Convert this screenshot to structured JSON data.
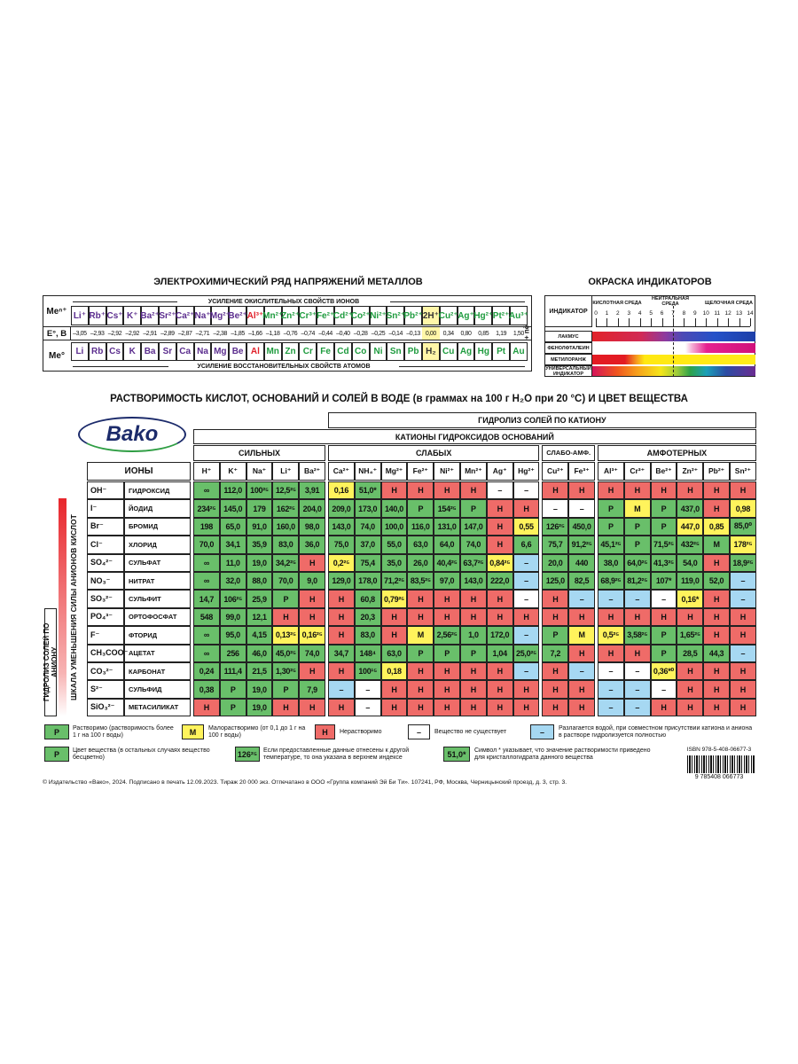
{
  "series_section": {
    "title": "ЭЛЕКТРОХИМИЧЕСКИЙ РЯД НАПРЯЖЕНИЙ МЕТАЛЛОВ",
    "row_labels": [
      "Meⁿ⁺",
      "E°, B",
      "Me°"
    ],
    "arrow_top": "УСИЛЕНИЕ ОКИСЛИТЕЛЬНЫХ СВОЙСТВ ИОНОВ",
    "arrow_bottom": "УСИЛЕНИЕ ВОССТАНОВИТЕЛЬНЫХ СВОЙСТВ АТОМОВ",
    "electrons": "+ nē",
    "ions": [
      "Li⁺",
      "Rb⁺",
      "Cs⁺",
      "K⁺",
      "Ba²⁺",
      "Sr²⁺",
      "Ca²⁺",
      "Na⁺",
      "Mg²⁺",
      "Be²⁺",
      "Al³⁺",
      "Mn²⁺",
      "Zn²⁺",
      "Cr³⁺",
      "Fe²⁺",
      "Cd²⁺",
      "Co²⁺",
      "Ni²⁺",
      "Sn²⁺",
      "Pb²⁺",
      "2H⁺",
      "Cu²⁺",
      "Ag⁺",
      "Hg²⁺",
      "Pt²⁺",
      "Au³⁺"
    ],
    "potentials": [
      "–3,05",
      "–2,93",
      "–2,92",
      "–2,92",
      "–2,91",
      "–2,89",
      "–2,87",
      "–2,71",
      "–2,38",
      "–1,85",
      "–1,66",
      "–1,18",
      "–0,76",
      "–0,74",
      "–0,44",
      "–0,40",
      "–0,28",
      "–0,25",
      "–0,14",
      "–0,13",
      "0,00",
      "0,34",
      "0,80",
      "0,85",
      "1,19",
      "1,50"
    ],
    "metals": [
      "Li",
      "Rb",
      "Cs",
      "K",
      "Ba",
      "Sr",
      "Ca",
      "Na",
      "Mg",
      "Be",
      "Al",
      "Mn",
      "Zn",
      "Cr",
      "Fe",
      "Cd",
      "Co",
      "Ni",
      "Sn",
      "Pb",
      "H₂",
      "Cu",
      "Ag",
      "Hg",
      "Pt",
      "Au"
    ],
    "element_colors": "pppppppppprggggggggghggggg",
    "palette": {
      "p": "#5b2d8e",
      "r": "#e0202a",
      "g": "#1e9b3e",
      "h": "#333333"
    }
  },
  "indicators": {
    "title": "ОКРАСКА ИНДИКАТОРОВ",
    "header": "ИНДИКАТОР",
    "acid": "КИСЛОТНАЯ СРЕДА",
    "neutral": "НЕЙТРАЛЬНАЯ СРЕДА",
    "alkaline": "ЩЕЛОЧНАЯ СРЕДА",
    "scale": [
      0,
      1,
      2,
      3,
      4,
      5,
      6,
      7,
      8,
      9,
      10,
      11,
      12,
      13,
      14
    ],
    "rows": [
      "ЛАКМУС",
      "ФЕНОЛФТАЛЕИН",
      "МЕТИЛОРАНЖ",
      "УНИВЕРСАЛЬНЫЙ ИНДИКАТОР"
    ]
  },
  "solubility": {
    "title": "РАСТВОРИМОСТЬ КИСЛОТ, ОСНОВАНИЙ И СОЛЕЙ В ВОДЕ (в граммах на 100 г H₂O при 20 °C) И ЦВЕТ ВЕЩЕСТВА",
    "logo": "Bako",
    "hydrolysis_cation": "ГИДРОЛИЗ СОЛЕЙ ПО КАТИОНУ",
    "cations_header": "КАТИОНЫ ГИДРОКСИДОВ ОСНОВАНИЙ",
    "groups": [
      "СИЛЬНЫХ",
      "СЛАБЫХ",
      "СЛАБО-АМФ.",
      "АМФОТЕРНЫХ"
    ],
    "ions_header": "ИОНЫ",
    "hydrolysis_anion": "ГИДРОЛИЗ СОЛЕЙ ПО АНИОНУ",
    "anion_scale": "ШКАЛА УМЕНЬШЕНИЯ СИЛЫ АНИОНОВ КИСЛОТ",
    "cations": [
      "H⁺",
      "K⁺",
      "Na⁺",
      "Li⁺",
      "Ba²⁺",
      "Ca²⁺",
      "NH₄⁺",
      "Mg²⁺",
      "Fe²⁺",
      "Ni²⁺",
      "Mn²⁺",
      "Ag⁺",
      "Hg²⁺",
      "Cu²⁺",
      "Fe³⁺",
      "Al³⁺",
      "Cr³⁺",
      "Be²⁺",
      "Zn²⁺",
      "Pb²⁺",
      "Sn²⁺"
    ],
    "anions": [
      {
        "formula": "OH⁻",
        "name": "ГИДРОКСИД"
      },
      {
        "formula": "I⁻",
        "name": "ЙОДИД"
      },
      {
        "formula": "Br⁻",
        "name": "БРОМИД"
      },
      {
        "formula": "Cl⁻",
        "name": "ХЛОРИД"
      },
      {
        "formula": "SO₄²⁻",
        "name": "СУЛЬФАТ"
      },
      {
        "formula": "NO₃⁻",
        "name": "НИТРАТ"
      },
      {
        "formula": "SO₃²⁻",
        "name": "СУЛЬФИТ"
      },
      {
        "formula": "PO₄³⁻",
        "name": "ОРТОФОСФАТ"
      },
      {
        "formula": "F⁻",
        "name": "ФТОРИД"
      },
      {
        "formula": "CH₃COO⁻",
        "name": "АЦЕТАТ"
      },
      {
        "formula": "CO₃²⁻",
        "name": "КАРБОНАТ"
      },
      {
        "formula": "S²⁻",
        "name": "СУЛЬФИД"
      },
      {
        "formula": "SiO₃²⁻",
        "name": "МЕТАСИЛИКАТ"
      }
    ],
    "values": [
      [
        "∞",
        "112,0",
        "100²⁵",
        "12,5²⁵",
        "3,91",
        "0,16",
        "51,0*",
        "Н",
        "Н",
        "Н",
        "Н",
        "–",
        "–",
        "Н",
        "Н",
        "Н",
        "Н",
        "Н",
        "Н",
        "Н",
        "Н"
      ],
      [
        "234²⁵",
        "145,0",
        "179",
        "162²⁵",
        "204,0",
        "209,0",
        "173,0",
        "140,0",
        "Р",
        "154²⁵",
        "Р",
        "Н",
        "Н",
        "–",
        "–",
        "Р",
        "М",
        "Р",
        "437,0",
        "Н",
        "0,98"
      ],
      [
        "198",
        "65,0",
        "91,0",
        "160,0",
        "98,0",
        "143,0",
        "74,0",
        "100,0",
        "116,0",
        "131,0",
        "147,0",
        "Н",
        "0,55",
        "126²⁵",
        "450,0",
        "Р",
        "Р",
        "Р",
        "447,0",
        "0,85",
        "85,0⁰"
      ],
      [
        "70,0",
        "34,1",
        "35,9",
        "83,0",
        "36,0",
        "75,0",
        "37,0",
        "55,0",
        "63,0",
        "64,0",
        "74,0",
        "Н",
        "6,6",
        "75,7",
        "91,2²⁵",
        "45,1²⁵",
        "Р",
        "71,5²⁵",
        "432²⁵",
        "М",
        "178²⁵"
      ],
      [
        "∞",
        "11,0",
        "19,0",
        "34,2²⁵",
        "Н",
        "0,2²⁵",
        "75,4",
        "35,0",
        "26,0",
        "40,4²⁵",
        "63,7²⁵",
        "0,84²⁵",
        "–",
        "20,0",
        "440",
        "38,0",
        "64,0²⁵",
        "41,3²⁵",
        "54,0",
        "Н",
        "18,9²⁵"
      ],
      [
        "∞",
        "32,0",
        "88,0",
        "70,0",
        "9,0",
        "129,0",
        "178,0",
        "71,2²⁵",
        "83,5²⁵",
        "97,0",
        "143,0",
        "222,0",
        "–",
        "125,0",
        "82,5",
        "68,9²⁵",
        "81,2²⁵",
        "107*",
        "119,0",
        "52,0",
        "–"
      ],
      [
        "14,7",
        "106²⁵",
        "25,9",
        "Р",
        "Н",
        "Н",
        "60,8",
        "0,79²⁵",
        "Н",
        "Н",
        "Н",
        "Н",
        "–",
        "Н",
        "–",
        "–",
        "–",
        "–",
        "0,16*",
        "Н",
        "–"
      ],
      [
        "548",
        "99,0",
        "12,1",
        "Н",
        "Н",
        "Н",
        "20,3",
        "Н",
        "Н",
        "Н",
        "Н",
        "Н",
        "Н",
        "Н",
        "Н",
        "Н",
        "Н",
        "Н",
        "Н",
        "Н",
        "Н"
      ],
      [
        "∞",
        "95,0",
        "4,15",
        "0,13²⁵",
        "0,16²⁵",
        "Н",
        "83,0",
        "Н",
        "М",
        "2,56²⁵",
        "1,0",
        "172,0",
        "–",
        "Р",
        "М",
        "0,5²⁵",
        "3,58²⁵",
        "Р",
        "1,65²⁵",
        "Н",
        "Н"
      ],
      [
        "∞",
        "256",
        "46,0",
        "45,0²⁵",
        "74,0",
        "34,7",
        "148⁴",
        "63,0",
        "Р",
        "Р",
        "Р",
        "1,04",
        "25,0²⁵",
        "7,2",
        "Н",
        "Н",
        "Н",
        "Р",
        "28,5",
        "44,3",
        "–"
      ],
      [
        "0,24",
        "111,4",
        "21,5",
        "1,30²⁵",
        "Н",
        "Н",
        "100¹⁵",
        "0,18",
        "Н",
        "Н",
        "Н",
        "Н",
        "–",
        "Н",
        "–",
        "–",
        "–",
        "0,36*⁰",
        "Н",
        "Н",
        "Н"
      ],
      [
        "0,38",
        "Р",
        "19,0",
        "Р",
        "7,9",
        "–",
        "–",
        "Н",
        "Н",
        "Н",
        "Н",
        "Н",
        "Н",
        "Н",
        "Н",
        "–",
        "–",
        "–",
        "Н",
        "Н",
        "Н"
      ],
      [
        "Н",
        "Р",
        "19,0",
        "Н",
        "Н",
        "Н",
        "–",
        "Н",
        "Н",
        "Н",
        "Н",
        "Н",
        "Н",
        "Н",
        "Н",
        "–",
        "–",
        "Н",
        "Н",
        "Н",
        "Н"
      ]
    ],
    "fills": [
      "gggggygrrrrwwrrrrrrrr",
      "gggggggggggrrwwgyggry",
      "gggggggggggrygggggyyg",
      "gggggggggggrggggggggy",
      "ggggrygggggybggggggrg",
      "ggggggggggggbgggggggb",
      "ggggrrgyrrrrwrbbbwyrb",
      "gggrrrgrrrrrrrrrrrrrr",
      "gggyyrgrygggbgyygggrr",
      "ggggggggggggggrrrgggb",
      "ggggrrgyrrrrbrbwwyrrr",
      "gggggbwrrrrrrrrbbwrrr",
      "rggrrrwrrrrrrrrbbrrrr"
    ],
    "palette": {
      "g": "#69bf6a",
      "y": "#fff35c",
      "r": "#ef6b68",
      "w": "#ffffff",
      "b": "#a6d8f2"
    }
  },
  "legend": [
    {
      "symbol": "Р",
      "fill": "g",
      "text": "Растворимо (растворимость более 1 г на 100 г воды)"
    },
    {
      "symbol": "М",
      "fill": "y",
      "text": "Малорастворимо (от 0,1 до 1 г на 100 г воды)"
    },
    {
      "symbol": "Н",
      "fill": "r",
      "text": "Нерастворимо"
    },
    {
      "symbol": "–",
      "fill": "w",
      "text": "Вещество не существует"
    },
    {
      "symbol": "–",
      "fill": "b",
      "text": "Разлагается водой, при совместном присутствии катиона и аниона в растворе гидролизуется полностью"
    },
    {
      "symbol": "Р",
      "fill": "g",
      "text": "Цвет вещества (в остальных случаях вещество бесцветно)"
    },
    {
      "symbol": "126²⁵",
      "fill": "g",
      "text": "Если предоставленные данные отнесены к другой температуре, то она указана в верхнем индексе"
    },
    {
      "symbol": "51,0*",
      "fill": "g",
      "text": "Символ * указывает, что значение растворимости приведено для кристаллогидрата данного вещества"
    }
  ],
  "isbn": "ISBN 978-5-408-06677-3",
  "barcode": "9 785408 066773",
  "footer": "© Издательство «Вако», 2024. Подписано в печать 12.09.2023. Тираж 20 000 экз. Отпечатано в ООО «Группа компаний Эй Би Ти». 107241, РФ, Москва, Черницынский проезд, д. 3, стр. 3."
}
